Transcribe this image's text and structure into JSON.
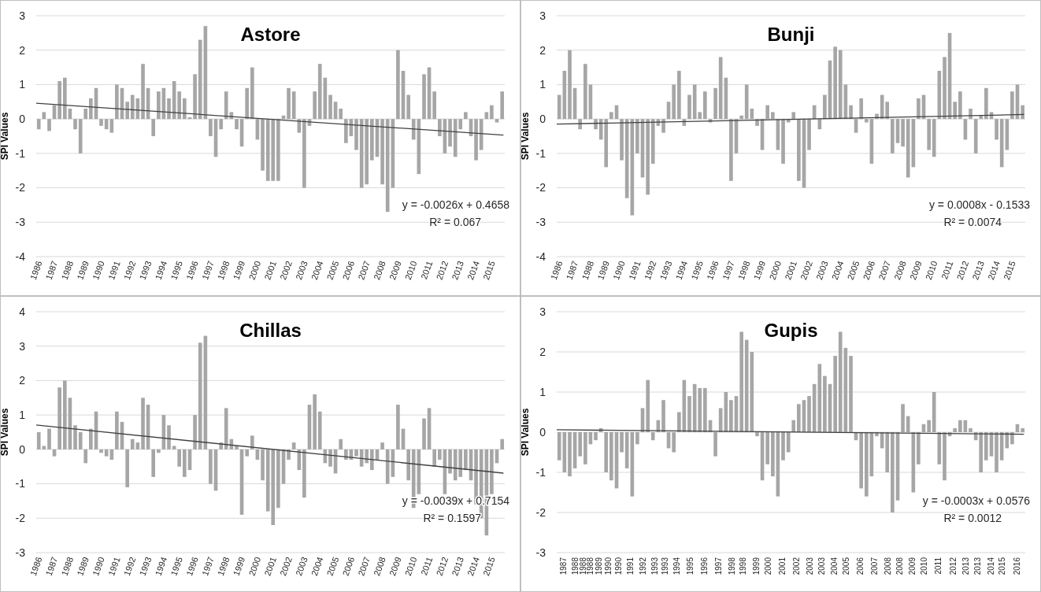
{
  "chart_data": [
    {
      "type": "bar",
      "title": "Astore",
      "ylabel": "SPI Values",
      "grid": "y",
      "xlim": [
        "1986-01",
        "2016-01"
      ],
      "ylim": [
        -4,
        3
      ],
      "yticks": [
        -4,
        -3,
        -2,
        -1,
        0,
        1,
        2,
        3
      ],
      "xticks": [
        "1986",
        "1987",
        "1988",
        "1989",
        "1990",
        "1991",
        "1992",
        "1993",
        "1994",
        "1995",
        "1996",
        "1997",
        "1998",
        "1999",
        "2000",
        "2001",
        "2002",
        "2003",
        "2004",
        "2005",
        "2006",
        "2007",
        "2008",
        "2009",
        "2010",
        "2011",
        "2012",
        "2013",
        "2014",
        "2015"
      ],
      "annotations": [
        "y = -0.0026x + 0.4658",
        "R² = 0.067"
      ],
      "series": [
        {
          "color": "#a6a6a6",
          "x": [
            "1986-03",
            "1986-07",
            "1986-11",
            "1987-03",
            "1987-07",
            "1987-11",
            "1988-03",
            "1988-07",
            "1988-11",
            "1989-03",
            "1989-07",
            "1989-11",
            "1990-03",
            "1990-07",
            "1990-11",
            "1991-03",
            "1991-07",
            "1991-11",
            "1992-03",
            "1992-07",
            "1992-11",
            "1993-03",
            "1993-07",
            "1993-11",
            "1994-03",
            "1994-07",
            "1994-11",
            "1995-03",
            "1995-07",
            "1995-11",
            "1996-03",
            "1996-07",
            "1996-11",
            "1997-03",
            "1997-07",
            "1997-11",
            "1998-03",
            "1998-07",
            "1998-11",
            "1999-03",
            "1999-07",
            "1999-11",
            "2000-03",
            "2000-07",
            "2000-11",
            "2001-03",
            "2001-07",
            "2001-11",
            "2002-03",
            "2002-07",
            "2002-11",
            "2003-03",
            "2003-07",
            "2003-11",
            "2004-03",
            "2004-07",
            "2004-11",
            "2005-03",
            "2005-07",
            "2005-11",
            "2006-03",
            "2006-07",
            "2006-11",
            "2007-03",
            "2007-07",
            "2007-11",
            "2008-03",
            "2008-07",
            "2008-11",
            "2009-03",
            "2009-07",
            "2009-11",
            "2010-03",
            "2010-07",
            "2010-11",
            "2011-03",
            "2011-07",
            "2011-11",
            "2012-03",
            "2012-07",
            "2012-11",
            "2013-03",
            "2013-07",
            "2013-11",
            "2014-03",
            "2014-07",
            "2014-11",
            "2015-03",
            "2015-07",
            "2015-11"
          ],
          "values": [
            -0.3,
            0.2,
            -0.35,
            0.4,
            1.1,
            1.2,
            0.3,
            -0.3,
            -1.0,
            0.3,
            0.6,
            0.9,
            -0.2,
            -0.3,
            -0.4,
            1.0,
            0.9,
            0.5,
            0.7,
            0.6,
            1.6,
            0.9,
            -0.5,
            0.8,
            0.9,
            0.6,
            1.1,
            0.8,
            0.6,
            0.05,
            1.3,
            2.3,
            2.7,
            -0.5,
            -1.1,
            -0.3,
            0.8,
            0.2,
            -0.3,
            -0.8,
            0.9,
            1.5,
            -0.6,
            -1.5,
            -1.8,
            -1.8,
            -1.8,
            0.1,
            0.9,
            0.8,
            -0.4,
            -2.0,
            -0.2,
            0.8,
            1.6,
            1.2,
            0.7,
            0.5,
            0.3,
            -0.7,
            -0.5,
            -0.9,
            -2.0,
            -1.9,
            -1.2,
            -1.1,
            -1.9,
            -2.7,
            -2.0,
            2.0,
            1.4,
            0.7,
            -0.6,
            -1.6,
            1.3,
            1.5,
            0.8,
            -0.5,
            -1.0,
            -0.8,
            -1.1,
            -0.3,
            0.2,
            -0.5,
            -1.2,
            -0.9,
            0.2,
            0.4,
            -0.1,
            0.8
          ]
        },
        {
          "type": "line",
          "color": "#404040",
          "x": [
            "1986-01",
            "2015-12"
          ],
          "values": [
            0.46,
            -0.47
          ]
        }
      ]
    },
    {
      "type": "bar",
      "title": "Bunji",
      "ylabel": "SPI Values",
      "grid": "y",
      "xlim": [
        "1986-01",
        "2016-01"
      ],
      "ylim": [
        -4,
        3
      ],
      "yticks": [
        -4,
        -3,
        -2,
        -1,
        0,
        1,
        2,
        3
      ],
      "xticks": [
        "1986",
        "1987",
        "1988",
        "1989",
        "1990",
        "1991",
        "1992",
        "1993",
        "1994",
        "1995",
        "1996",
        "1997",
        "1998",
        "1999",
        "2000",
        "2001",
        "2002",
        "2003",
        "2004",
        "2005",
        "2006",
        "2007",
        "2008",
        "2009",
        "2010",
        "2011",
        "2012",
        "2013",
        "2014",
        "2015"
      ],
      "annotations": [
        "y = 0.0008x - 0.1533",
        "R² = 0.0074"
      ],
      "series": [
        {
          "color": "#a6a6a6",
          "x": [
            "1986-03",
            "1986-07",
            "1986-11",
            "1987-03",
            "1987-07",
            "1987-11",
            "1988-03",
            "1988-07",
            "1988-11",
            "1989-03",
            "1989-07",
            "1989-11",
            "1990-03",
            "1990-07",
            "1990-11",
            "1991-03",
            "1991-07",
            "1991-11",
            "1992-03",
            "1992-07",
            "1992-11",
            "1993-03",
            "1993-07",
            "1993-11",
            "1994-03",
            "1994-07",
            "1994-11",
            "1995-03",
            "1995-07",
            "1995-11",
            "1996-03",
            "1996-07",
            "1996-11",
            "1997-03",
            "1997-07",
            "1997-11",
            "1998-03",
            "1998-07",
            "1998-11",
            "1999-03",
            "1999-07",
            "1999-11",
            "2000-03",
            "2000-07",
            "2000-11",
            "2001-03",
            "2001-07",
            "2001-11",
            "2002-03",
            "2002-07",
            "2002-11",
            "2003-03",
            "2003-07",
            "2003-11",
            "2004-03",
            "2004-07",
            "2004-11",
            "2005-03",
            "2005-07",
            "2005-11",
            "2006-03",
            "2006-07",
            "2006-11",
            "2007-03",
            "2007-07",
            "2007-11",
            "2008-03",
            "2008-07",
            "2008-11",
            "2009-03",
            "2009-07",
            "2009-11",
            "2010-03",
            "2010-07",
            "2010-11",
            "2011-03",
            "2011-07",
            "2011-11",
            "2012-03",
            "2012-07",
            "2012-11",
            "2013-03",
            "2013-07",
            "2013-11",
            "2014-03",
            "2014-07",
            "2014-11",
            "2015-03",
            "2015-07",
            "2015-11"
          ],
          "values": [
            0.7,
            1.4,
            2.0,
            0.9,
            -0.3,
            1.6,
            1.0,
            -0.3,
            -0.6,
            -1.4,
            0.2,
            0.4,
            -1.2,
            -2.3,
            -2.8,
            -1.0,
            -1.7,
            -2.2,
            -1.3,
            -0.2,
            -0.4,
            0.5,
            1.0,
            1.4,
            -0.2,
            0.7,
            1.0,
            0.2,
            0.8,
            -0.1,
            0.9,
            1.8,
            1.2,
            -1.8,
            -1.0,
            0.1,
            1.0,
            0.3,
            -0.2,
            -0.9,
            0.4,
            0.2,
            -0.9,
            -1.3,
            -0.1,
            0.2,
            -1.8,
            -2.0,
            -0.9,
            0.4,
            -0.3,
            0.7,
            1.7,
            2.1,
            2.0,
            1.0,
            0.4,
            -0.4,
            0.6,
            -0.1,
            -1.3,
            0.15,
            0.7,
            0.5,
            -1.0,
            -0.7,
            -0.8,
            -1.7,
            -1.4,
            0.6,
            0.7,
            -0.9,
            -1.1,
            1.4,
            1.8,
            2.5,
            0.5,
            0.8,
            -0.6,
            0.3,
            -1.0,
            0.1,
            0.9,
            0.2,
            -0.6,
            -1.4,
            -0.9,
            0.8,
            1.0,
            0.4
          ]
        },
        {
          "type": "line",
          "color": "#404040",
          "x": [
            "1986-01",
            "2015-12"
          ],
          "values": [
            -0.15,
            0.13
          ]
        }
      ]
    },
    {
      "type": "bar",
      "title": "Chillas",
      "ylabel": "SPI Values",
      "grid": "y",
      "xlim": [
        "1986-01",
        "2016-01"
      ],
      "ylim": [
        -3,
        4
      ],
      "yticks": [
        -3,
        -2,
        -1,
        0,
        1,
        2,
        3,
        4
      ],
      "xticks": [
        "1986",
        "1987",
        "1988",
        "1989",
        "1990",
        "1991",
        "1992",
        "1993",
        "1994",
        "1995",
        "1996",
        "1997",
        "1998",
        "1999",
        "2000",
        "2001",
        "2002",
        "2003",
        "2004",
        "2005",
        "2006",
        "2007",
        "2008",
        "2009",
        "2010",
        "2011",
        "2012",
        "2013",
        "2014",
        "2015"
      ],
      "annotations": [
        "y = -0.0039x + 0.7154",
        "R² = 0.1597"
      ],
      "series": [
        {
          "color": "#a6a6a6",
          "x": [
            "1986-03",
            "1986-07",
            "1986-11",
            "1987-03",
            "1987-07",
            "1987-11",
            "1988-03",
            "1988-07",
            "1988-11",
            "1989-03",
            "1989-07",
            "1989-11",
            "1990-03",
            "1990-07",
            "1990-11",
            "1991-03",
            "1991-07",
            "1991-11",
            "1992-03",
            "1992-07",
            "1992-11",
            "1993-03",
            "1993-07",
            "1993-11",
            "1994-03",
            "1994-07",
            "1994-11",
            "1995-03",
            "1995-07",
            "1995-11",
            "1996-03",
            "1996-07",
            "1996-11",
            "1997-03",
            "1997-07",
            "1997-11",
            "1998-03",
            "1998-07",
            "1998-11",
            "1999-03",
            "1999-07",
            "1999-11",
            "2000-03",
            "2000-07",
            "2000-11",
            "2001-03",
            "2001-07",
            "2001-11",
            "2002-03",
            "2002-07",
            "2002-11",
            "2003-03",
            "2003-07",
            "2003-11",
            "2004-03",
            "2004-07",
            "2004-11",
            "2005-03",
            "2005-07",
            "2005-11",
            "2006-03",
            "2006-07",
            "2006-11",
            "2007-03",
            "2007-07",
            "2007-11",
            "2008-03",
            "2008-07",
            "2008-11",
            "2009-03",
            "2009-07",
            "2009-11",
            "2010-03",
            "2010-07",
            "2010-11",
            "2011-03",
            "2011-07",
            "2011-11",
            "2012-03",
            "2012-07",
            "2012-11",
            "2013-03",
            "2013-07",
            "2013-11",
            "2014-03",
            "2014-07",
            "2014-11",
            "2015-03",
            "2015-07",
            "2015-11"
          ],
          "values": [
            0.5,
            0.1,
            0.6,
            -0.2,
            1.8,
            2.0,
            1.5,
            0.7,
            0.5,
            -0.4,
            0.6,
            1.1,
            -0.1,
            -0.2,
            -0.3,
            1.1,
            0.8,
            -1.1,
            0.3,
            0.2,
            1.5,
            1.3,
            -0.8,
            -0.1,
            1.0,
            0.7,
            0.1,
            -0.5,
            -0.8,
            -0.6,
            1.0,
            3.1,
            3.3,
            -1.0,
            -1.2,
            0.2,
            1.2,
            0.3,
            0.1,
            -1.9,
            -0.2,
            0.4,
            -0.3,
            -0.9,
            -1.8,
            -2.2,
            -1.7,
            -1.0,
            -0.3,
            0.2,
            -0.6,
            -1.4,
            1.3,
            1.6,
            1.1,
            -0.4,
            -0.5,
            -0.7,
            0.3,
            -0.3,
            -0.3,
            -0.2,
            -0.5,
            -0.4,
            -0.6,
            -0.3,
            0.2,
            -1.0,
            -0.8,
            1.3,
            0.6,
            -0.9,
            -1.7,
            -1.3,
            0.9,
            1.2,
            -0.5,
            -0.3,
            -1.3,
            -0.7,
            -0.9,
            -0.8,
            -0.6,
            -0.9,
            -1.6,
            -2.0,
            -2.5,
            -1.3,
            -0.4,
            0.3
          ]
        },
        {
          "type": "line",
          "color": "#404040",
          "x": [
            "1986-01",
            "2015-12"
          ],
          "values": [
            0.71,
            -0.69
          ]
        }
      ]
    },
    {
      "type": "bar",
      "title": "Gupis",
      "ylabel": "SPI Values",
      "grid": "y",
      "xlim": [
        "1987-01",
        "2017-01"
      ],
      "ylim": [
        -3,
        3
      ],
      "yticks": [
        -3,
        -2,
        -1,
        0,
        1,
        2,
        3
      ],
      "xticks": [
        {
          "value": "1987-04",
          "label": "1987"
        },
        {
          "value": "1988-01",
          "label": "1988"
        },
        {
          "value": "1988-07",
          "label": "1988"
        },
        {
          "value": "1988-12",
          "label": "1988"
        },
        {
          "value": "1989-07",
          "label": "1989"
        },
        {
          "value": "1990-02",
          "label": "1990"
        },
        {
          "value": "1990-10",
          "label": "1990"
        },
        {
          "value": "1991-07",
          "label": "1991"
        },
        {
          "value": "1992-05",
          "label": "1992"
        },
        {
          "value": "1993-02",
          "label": "1993"
        },
        {
          "value": "1993-10",
          "label": "1993"
        },
        {
          "value": "1994-07",
          "label": "1994"
        },
        {
          "value": "1995-05",
          "label": "1995"
        },
        {
          "value": "1996-04",
          "label": "1996"
        },
        {
          "value": "1997-03",
          "label": "1997"
        },
        {
          "value": "1998-01",
          "label": "1998"
        },
        {
          "value": "1998-10",
          "label": "1998"
        },
        {
          "value": "1999-08",
          "label": "1999"
        },
        {
          "value": "2000-05",
          "label": "2000"
        },
        {
          "value": "2001-04",
          "label": "2001"
        },
        {
          "value": "2002-03",
          "label": "2002"
        },
        {
          "value": "2003-01",
          "label": "2003"
        },
        {
          "value": "2003-10",
          "label": "2003"
        },
        {
          "value": "2004-08",
          "label": "2004"
        },
        {
          "value": "2005-05",
          "label": "2005"
        },
        {
          "value": "2006-04",
          "label": "2006"
        },
        {
          "value": "2007-03",
          "label": "2007"
        },
        {
          "value": "2008-01",
          "label": "2008"
        },
        {
          "value": "2008-10",
          "label": "2008"
        },
        {
          "value": "2009-08",
          "label": "2009"
        },
        {
          "value": "2010-05",
          "label": "2010"
        },
        {
          "value": "2011-04",
          "label": "2011"
        },
        {
          "value": "2012-03",
          "label": "2012"
        },
        {
          "value": "2013-01",
          "label": "2013"
        },
        {
          "value": "2013-10",
          "label": "2013"
        },
        {
          "value": "2014-08",
          "label": "2014"
        },
        {
          "value": "2015-05",
          "label": "2015"
        },
        {
          "value": "2016-04",
          "label": "2016"
        }
      ],
      "annotations": [
        "y = -0.0003x + 0.0576",
        "R² = 0.0012"
      ],
      "series": [
        {
          "color": "#a6a6a6",
          "x": [
            "1987-03",
            "1987-07",
            "1987-11",
            "1988-03",
            "1988-07",
            "1988-11",
            "1989-03",
            "1989-07",
            "1989-11",
            "1990-03",
            "1990-07",
            "1990-11",
            "1991-03",
            "1991-07",
            "1991-11",
            "1992-03",
            "1992-07",
            "1992-11",
            "1993-03",
            "1993-07",
            "1993-11",
            "1994-03",
            "1994-07",
            "1994-11",
            "1995-03",
            "1995-07",
            "1995-11",
            "1996-03",
            "1996-07",
            "1996-11",
            "1997-03",
            "1997-07",
            "1997-11",
            "1998-03",
            "1998-07",
            "1998-11",
            "1999-03",
            "1999-07",
            "1999-11",
            "2000-03",
            "2000-07",
            "2000-11",
            "2001-03",
            "2001-07",
            "2001-11",
            "2002-03",
            "2002-07",
            "2002-11",
            "2003-03",
            "2003-07",
            "2003-11",
            "2004-03",
            "2004-07",
            "2004-11",
            "2005-03",
            "2005-07",
            "2005-11",
            "2006-03",
            "2006-07",
            "2006-11",
            "2007-03",
            "2007-07",
            "2007-11",
            "2008-03",
            "2008-07",
            "2008-11",
            "2009-03",
            "2009-07",
            "2009-11",
            "2010-03",
            "2010-07",
            "2010-11",
            "2011-03",
            "2011-07",
            "2011-11",
            "2012-03",
            "2012-07",
            "2012-11",
            "2013-03",
            "2013-07",
            "2013-11",
            "2014-03",
            "2014-07",
            "2014-11",
            "2015-03",
            "2015-07",
            "2015-11",
            "2016-03",
            "2016-07",
            "2016-11"
          ],
          "values": [
            -0.7,
            -1.0,
            -1.1,
            -0.9,
            -0.6,
            -0.8,
            -0.3,
            -0.2,
            0.1,
            -1.0,
            -1.2,
            -1.4,
            -0.5,
            -0.9,
            -1.6,
            -0.3,
            0.6,
            1.3,
            -0.2,
            0.3,
            0.8,
            -0.4,
            -0.5,
            0.5,
            1.3,
            0.9,
            1.2,
            1.1,
            1.1,
            0.3,
            -0.6,
            0.6,
            1.0,
            0.8,
            0.9,
            2.5,
            2.3,
            2.0,
            -0.1,
            -1.2,
            -0.8,
            -1.1,
            -1.6,
            -0.7,
            -0.5,
            0.3,
            0.7,
            0.8,
            0.9,
            1.2,
            1.7,
            1.4,
            1.2,
            1.9,
            2.5,
            2.1,
            1.9,
            -0.2,
            -1.4,
            -1.6,
            -1.1,
            -0.1,
            -0.4,
            -1.0,
            -2.0,
            -1.7,
            0.7,
            0.4,
            -1.5,
            -0.8,
            0.2,
            0.3,
            1.0,
            -0.8,
            -1.2,
            -0.1,
            0.1,
            0.3,
            0.3,
            0.1,
            -0.2,
            -1.0,
            -0.7,
            -0.6,
            -1.0,
            -0.7,
            -0.4,
            -0.3,
            0.2,
            0.1
          ]
        },
        {
          "type": "line",
          "color": "#404040",
          "x": [
            "1987-01",
            "2016-12"
          ],
          "values": [
            0.06,
            -0.05
          ]
        }
      ]
    }
  ]
}
